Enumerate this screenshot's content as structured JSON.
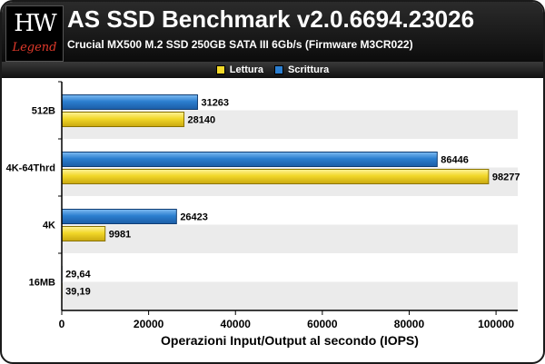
{
  "header": {
    "logo_text": "HW",
    "logo_sub": "Legend",
    "title": "AS SSD Benchmark v2.0.6694.23026",
    "subtitle": "Crucial MX500 M.2 SSD 250GB SATA III 6Gb/s (Firmware M3CR022)"
  },
  "colors": {
    "lettura": "#f2d829",
    "scrittura": "#2c7fd0",
    "band": "#ebebeb"
  },
  "chart_data": {
    "type": "bar",
    "orientation": "horizontal",
    "categories": [
      "512B",
      "4K-64Thrd",
      "4K",
      "16MB"
    ],
    "series": [
      {
        "name": "Scrittura",
        "values": [
          31263,
          86446,
          26423,
          29.64
        ],
        "labels": [
          "31263",
          "86446",
          "26423",
          "29,64"
        ]
      },
      {
        "name": "Lettura",
        "values": [
          28140,
          98277,
          9981,
          39.19
        ],
        "labels": [
          "28140",
          "98277",
          "9981",
          "39,19"
        ]
      }
    ],
    "xlabel": "Operazioni Input/Output al secondo (IOPS)",
    "ylabel": "",
    "xlim": [
      0,
      105000
    ],
    "xticks": [
      0,
      20000,
      40000,
      60000,
      80000,
      100000
    ],
    "legend_position": "top-center",
    "grid": false
  }
}
